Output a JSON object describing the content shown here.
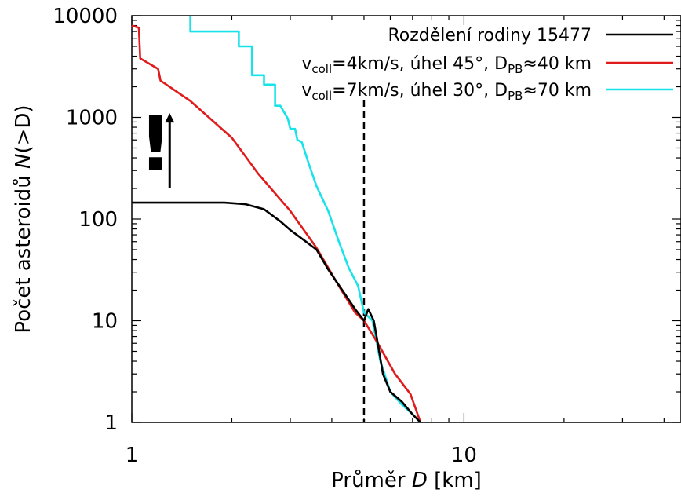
{
  "chart_data": {
    "type": "line",
    "x_scale": "log",
    "y_scale": "log",
    "xlim": [
      1,
      45
    ],
    "ylim": [
      1,
      10000
    ],
    "x_ticks": [
      {
        "value": 1,
        "label": "1"
      },
      {
        "value": 10,
        "label": "10"
      }
    ],
    "y_ticks": [
      {
        "value": 1,
        "label": "1"
      },
      {
        "value": 10,
        "label": "10"
      },
      {
        "value": 100,
        "label": "100"
      },
      {
        "value": 1000,
        "label": "1000"
      },
      {
        "value": 10000,
        "label": "10000"
      }
    ],
    "xlabel": {
      "main": "Průměr ",
      "var": "D",
      "unit": " [km]"
    },
    "ylabel": {
      "main": "Počet asteroidů ",
      "var": "N",
      "rest": "(>D)"
    },
    "grid": false,
    "legend_position": "top-right",
    "vertical_line": {
      "x": 5.0,
      "style": "dashed",
      "color": "#000000"
    },
    "annotations": [
      {
        "text": "!",
        "x": 1.18,
        "y": 300
      },
      {
        "type": "arrow",
        "x": 1.3,
        "from_y": 200,
        "to_y": 1100
      }
    ],
    "series": [
      {
        "name": "Rozdělení rodiny 15477",
        "legend": {
          "base": "Rozdělení rodiny 15477"
        },
        "color": "#000000",
        "points": [
          [
            1.0,
            145
          ],
          [
            1.5,
            145
          ],
          [
            1.9,
            145
          ],
          [
            2.2,
            140
          ],
          [
            2.5,
            125
          ],
          [
            2.8,
            95
          ],
          [
            3.0,
            78
          ],
          [
            3.3,
            62
          ],
          [
            3.6,
            50
          ],
          [
            3.9,
            32
          ],
          [
            4.3,
            20
          ],
          [
            4.7,
            13
          ],
          [
            5.0,
            10
          ],
          [
            5.15,
            13
          ],
          [
            5.35,
            10
          ],
          [
            5.5,
            6
          ],
          [
            5.7,
            3
          ],
          [
            6.0,
            2
          ],
          [
            6.5,
            1.6
          ],
          [
            7.0,
            1.2
          ],
          [
            7.4,
            1
          ]
        ]
      },
      {
        "name": "vcoll=4km/s, úhel 45°, DPB≈40 km",
        "legend": {
          "v": "v",
          "v_sub": "coll",
          "mid": "=4km/s, úhel 45°, D",
          "d_sub": "PB",
          "end": "≈40 km"
        },
        "color": "#e01b1b",
        "points": [
          [
            1.0,
            8000
          ],
          [
            1.05,
            7600
          ],
          [
            1.06,
            3800
          ],
          [
            1.2,
            3000
          ],
          [
            1.22,
            2300
          ],
          [
            1.5,
            1450
          ],
          [
            2.0,
            630
          ],
          [
            2.4,
            280
          ],
          [
            3.0,
            120
          ],
          [
            3.6,
            52
          ],
          [
            4.2,
            22
          ],
          [
            4.7,
            12
          ],
          [
            5.0,
            10
          ],
          [
            5.5,
            6
          ],
          [
            6.2,
            3
          ],
          [
            6.9,
            1.9
          ],
          [
            7.4,
            1
          ]
        ]
      },
      {
        "name": "vcoll=7km/s, úhel 30°, DPB≈70 km",
        "legend": {
          "v": "v",
          "v_sub": "coll",
          "mid": "=7km/s, úhel 30°, D",
          "d_sub": "PB",
          "end": "≈70 km"
        },
        "color": "#19e3ea",
        "points": [
          [
            1.5,
            10000
          ],
          [
            1.5,
            7000
          ],
          [
            2.1,
            7000
          ],
          [
            2.1,
            5000
          ],
          [
            2.3,
            5000
          ],
          [
            2.3,
            2600
          ],
          [
            2.5,
            2600
          ],
          [
            2.5,
            2100
          ],
          [
            2.7,
            2100
          ],
          [
            2.7,
            1300
          ],
          [
            2.8,
            1300
          ],
          [
            2.95,
            970
          ],
          [
            3.0,
            770
          ],
          [
            3.1,
            770
          ],
          [
            3.15,
            600
          ],
          [
            3.25,
            570
          ],
          [
            3.4,
            360
          ],
          [
            3.6,
            210
          ],
          [
            3.9,
            120
          ],
          [
            4.2,
            60
          ],
          [
            4.5,
            33
          ],
          [
            4.8,
            22
          ],
          [
            5.0,
            12
          ],
          [
            5.3,
            10
          ],
          [
            5.6,
            4
          ],
          [
            6.0,
            2
          ],
          [
            6.5,
            1.5
          ],
          [
            7.0,
            1.2
          ],
          [
            7.4,
            1
          ]
        ]
      }
    ]
  }
}
